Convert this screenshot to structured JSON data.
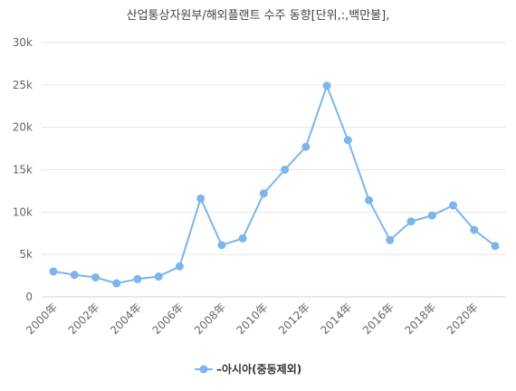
{
  "chart_data": {
    "type": "line",
    "title": "산업통상자원부/해외플랜트 수주 동향[단위,:,백만불],",
    "x": [
      "2000年",
      "2001年",
      "2002年",
      "2003年",
      "2004年",
      "2005年",
      "2006年",
      "2007年",
      "2008年",
      "2009年",
      "2010年",
      "2011年",
      "2012年",
      "2013年",
      "2014年",
      "2015年",
      "2016年",
      "2017年",
      "2018年",
      "2019年",
      "2020年",
      "2021年"
    ],
    "x_tick_labels": [
      "2000年",
      "2002年",
      "2004年",
      "2006年",
      "2008年",
      "2010年",
      "2012年",
      "2014年",
      "2016年",
      "2018年",
      "2020年"
    ],
    "y_tick_labels": [
      "0",
      "5k",
      "10k",
      "15k",
      "20k",
      "25k",
      "30k"
    ],
    "ylim": [
      0,
      30000
    ],
    "grid": true,
    "legend_position": "bottom",
    "series": [
      {
        "name": "–아시아(중동제외)",
        "color": "#7cb5ec",
        "values": [
          3000,
          2600,
          2300,
          1600,
          2100,
          2400,
          3600,
          11600,
          6100,
          6900,
          12200,
          15000,
          17700,
          24900,
          18500,
          11400,
          6700,
          8900,
          9600,
          10800,
          7900,
          6000
        ]
      }
    ]
  }
}
